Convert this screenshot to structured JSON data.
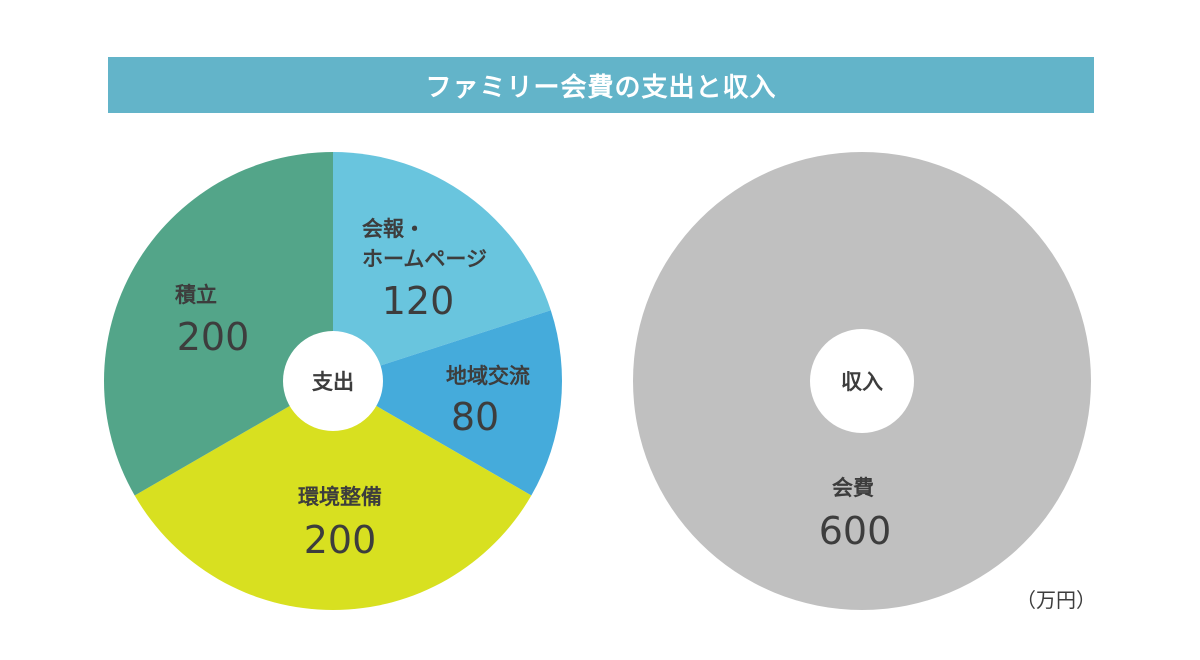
{
  "title": "ファミリー会費の支出と収入",
  "unit": "（万円）",
  "chart_data": [
    {
      "type": "pie",
      "center_label": "支出",
      "slices": [
        {
          "name_lines": [
            "会報・",
            "ホームページ"
          ],
          "value": 120,
          "value_label": "120",
          "color": "#69c5de"
        },
        {
          "name_lines": [
            "地域交流"
          ],
          "value": 80,
          "value_label": "80",
          "color": "#45abdb"
        },
        {
          "name_lines": [
            "環境整備"
          ],
          "value": 200,
          "value_label": "200",
          "color": "#d8e020"
        },
        {
          "name_lines": [
            "積立"
          ],
          "value": 200,
          "value_label": "200",
          "color": "#53a589"
        }
      ]
    },
    {
      "type": "pie",
      "center_label": "収入",
      "slices": [
        {
          "name_lines": [
            "会費"
          ],
          "value": 600,
          "value_label": "600",
          "color": "#c0c0c0"
        }
      ]
    }
  ]
}
